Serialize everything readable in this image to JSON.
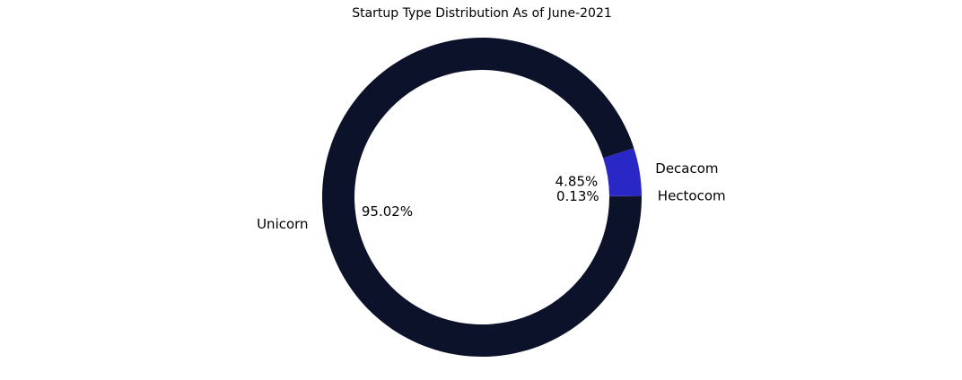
{
  "chart_data": {
    "type": "pie",
    "donut": true,
    "title": "Startup Type Distribution As of June-2021",
    "slices": [
      {
        "label": "Hectocom",
        "value": 0.13,
        "pct_label": "0.13%",
        "color": "#1a1a3a"
      },
      {
        "label": "Decacom",
        "value": 4.85,
        "pct_label": "4.85%",
        "color": "#2a27c7"
      },
      {
        "label": "Unicorn",
        "value": 95.02,
        "pct_label": "95.02%",
        "color": "#0c1229"
      }
    ],
    "legend": "none"
  }
}
